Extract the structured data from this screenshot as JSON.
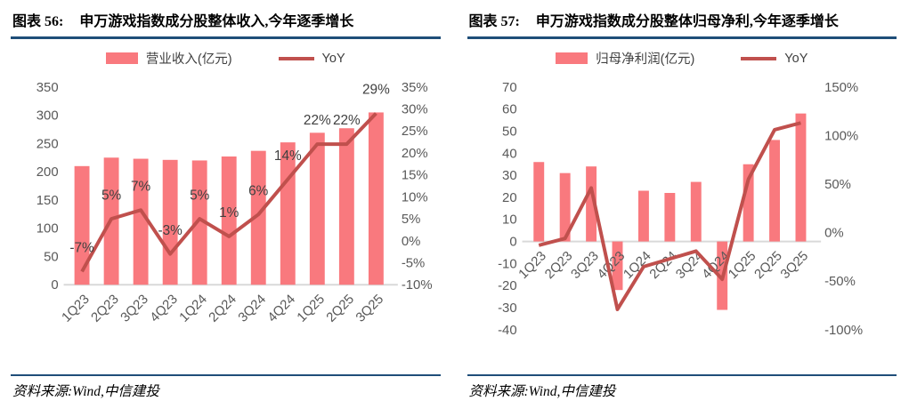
{
  "colors": {
    "bar": "#F9797E",
    "line": "#C0504D",
    "axis_text": "#595959",
    "data_label_text": "#404040",
    "baseline": "#D9D9D9",
    "rule": "#1F4E79",
    "title_text": "#000000"
  },
  "figures": [
    {
      "label": "图表 56:",
      "title": "申万游戏指数成分股整体收入,今年逐季增长",
      "legend": [
        {
          "type": "bar",
          "label": "营业收入(亿元)"
        },
        {
          "type": "line",
          "label": "YoY"
        }
      ],
      "source": "资料来源:Wind,中信建投",
      "chart_data": {
        "type": "combo-bar-line",
        "title": "申万游戏指数成分股整体收入,今年逐季增长",
        "categories": [
          "1Q23",
          "2Q23",
          "3Q23",
          "4Q23",
          "1Q24",
          "2Q24",
          "3Q24",
          "4Q24",
          "1Q25",
          "2Q25",
          "3Q25"
        ],
        "series": [
          {
            "name": "营业收入(亿元)",
            "type": "bar",
            "axis": "left",
            "values": [
              210,
              225,
              223,
              221,
              220,
              227,
              237,
              252,
              269,
              277,
              305
            ]
          },
          {
            "name": "YoY",
            "type": "line",
            "axis": "right",
            "values": [
              -7,
              5,
              7,
              -3,
              5,
              1,
              6,
              14,
              22,
              22,
              29
            ],
            "data_labels": [
              "-7%",
              "5%",
              "7%",
              "-3%",
              "5%",
              "1%",
              "6%",
              "14%",
              "22%",
              "22%",
              "29%"
            ]
          }
        ],
        "left_axis": {
          "min": 0,
          "max": 350,
          "step": 50,
          "suffix": ""
        },
        "right_axis": {
          "min": -10,
          "max": 35,
          "step": 5,
          "suffix": "%"
        },
        "grid": false,
        "legend_position": "top"
      }
    },
    {
      "label": "图表 57:",
      "title": "申万游戏指数成分股整体归母净利,今年逐季增长",
      "legend": [
        {
          "type": "bar",
          "label": "归母净利润(亿元)"
        },
        {
          "type": "line",
          "label": "YoY"
        }
      ],
      "source": "资料来源:Wind,中信建投",
      "chart_data": {
        "type": "combo-bar-line",
        "title": "申万游戏指数成分股整体归母净利,今年逐季增长",
        "categories": [
          "1Q23",
          "2Q23",
          "3Q23",
          "4Q23",
          "1Q24",
          "2Q24",
          "3Q24",
          "4Q24",
          "1Q25",
          "2Q25",
          "3Q25"
        ],
        "series": [
          {
            "name": "归母净利润(亿元)",
            "type": "bar",
            "axis": "left",
            "values": [
              36,
              31,
              34,
              -22,
              23,
              22,
              27,
              -31,
              35,
              46,
              58
            ]
          },
          {
            "name": "YoY",
            "type": "line",
            "axis": "right",
            "values": [
              -13,
              -6,
              46,
              -79,
              -35,
              -27,
              -19,
              -48,
              55,
              106,
              113
            ]
          }
        ],
        "left_axis": {
          "min": -40,
          "max": 70,
          "step": 10,
          "suffix": ""
        },
        "right_axis": {
          "min": -100,
          "max": 150,
          "step": 50,
          "suffix": "%"
        },
        "grid": false,
        "legend_position": "top"
      }
    }
  ]
}
